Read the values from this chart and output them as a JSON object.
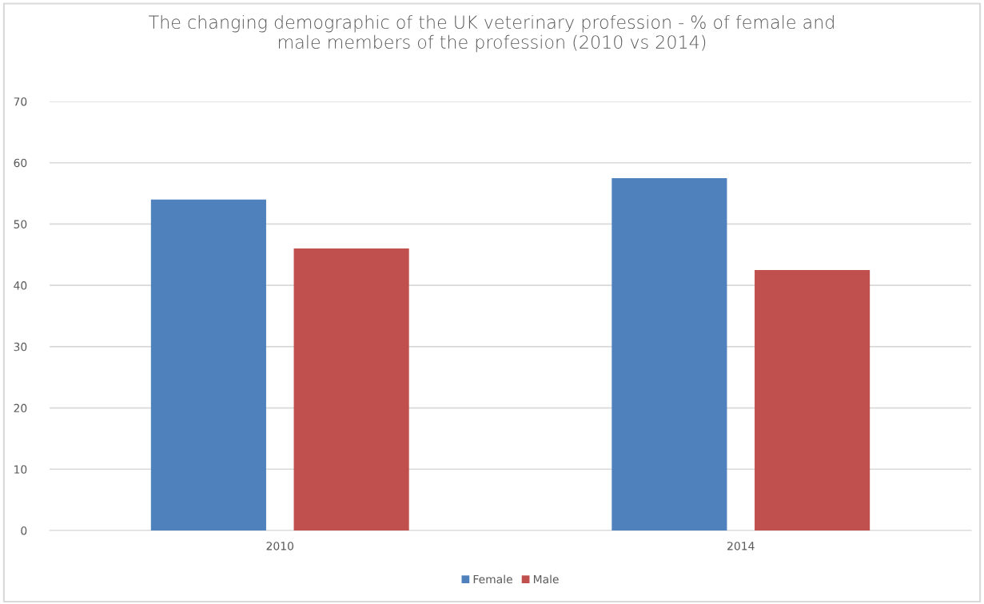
{
  "chart_data": {
    "type": "bar",
    "title": "The changing demographic of the UK veterinary profession - % of female and\nmale members of the profession (2010 vs 2014)",
    "categories": [
      "2010",
      "2014"
    ],
    "series": [
      {
        "name": "Female",
        "color": "#4f81bd",
        "values": [
          54,
          57.5
        ]
      },
      {
        "name": "Male",
        "color": "#c0504d",
        "values": [
          46,
          42.5
        ]
      }
    ],
    "ylim": [
      0,
      70
    ],
    "yticks": [
      0,
      10,
      20,
      30,
      40,
      50,
      60,
      70
    ],
    "grid": "y",
    "legend": "bottom"
  }
}
